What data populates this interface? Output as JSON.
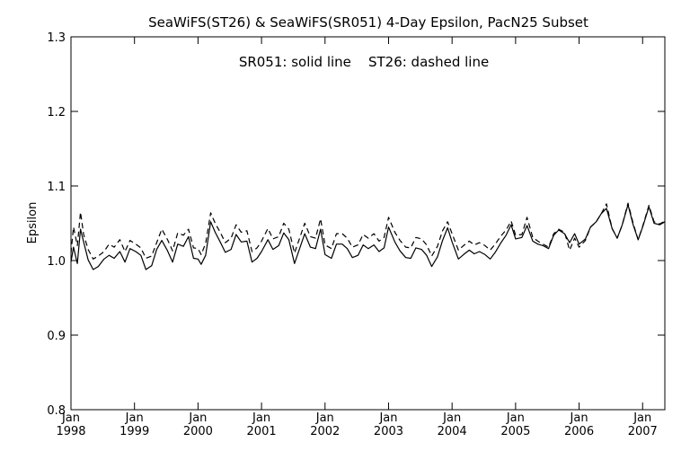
{
  "chart_data": {
    "type": "line",
    "title": "SeaWiFS(ST26) & SeaWiFS(SR051) 4-Day Epsilon, PacN25 Subset",
    "annotation": "SR051: solid line    ST26: dashed line",
    "xlabel": "",
    "ylabel": "Epsilon",
    "ylim": [
      0.8,
      1.3
    ],
    "y_ticks": [
      0.8,
      0.9,
      1.0,
      1.1,
      1.2,
      1.3
    ],
    "y_tick_labels": [
      "0.8",
      "0.9",
      "1.0",
      "1.1",
      "1.2",
      "1.3"
    ],
    "xlim": [
      1998.0,
      2007.35
    ],
    "x_ticks": [
      1998,
      1999,
      2000,
      2001,
      2002,
      2003,
      2004,
      2005,
      2006,
      2007
    ],
    "x_tick_month": "Jan",
    "x_tick_years": [
      "1998",
      "1999",
      "2000",
      "2001",
      "2002",
      "2003",
      "2004",
      "2005",
      "2006",
      "2007"
    ],
    "grid": false,
    "legend": "none",
    "series": [
      {
        "name": "SR051",
        "style": "solid",
        "x": [
          1998.0,
          1998.04,
          1998.1,
          1998.15,
          1998.2,
          1998.27,
          1998.35,
          1998.43,
          1998.52,
          1998.6,
          1998.68,
          1998.77,
          1998.85,
          1998.93,
          1999.02,
          1999.1,
          1999.18,
          1999.27,
          1999.35,
          1999.43,
          1999.52,
          1999.6,
          1999.68,
          1999.77,
          1999.85,
          1999.93,
          2000.0,
          2000.05,
          2000.12,
          2000.2,
          2000.27,
          2000.35,
          2000.43,
          2000.52,
          2000.6,
          2000.68,
          2000.77,
          2000.85,
          2000.93,
          2001.0,
          2001.1,
          2001.18,
          2001.27,
          2001.35,
          2001.43,
          2001.52,
          2001.6,
          2001.68,
          2001.77,
          2001.85,
          2001.93,
          2002.0,
          2002.1,
          2002.18,
          2002.27,
          2002.35,
          2002.43,
          2002.52,
          2002.6,
          2002.68,
          2002.77,
          2002.85,
          2002.93,
          2003.0,
          2003.1,
          2003.18,
          2003.27,
          2003.35,
          2003.43,
          2003.52,
          2003.6,
          2003.68,
          2003.77,
          2003.85,
          2003.93,
          2004.0,
          2004.1,
          2004.18,
          2004.27,
          2004.35,
          2004.43,
          2004.52,
          2004.6,
          2004.68,
          2004.77,
          2004.85,
          2004.93,
          2005.0,
          2005.1,
          2005.18,
          2005.27,
          2005.35,
          2005.43,
          2005.52,
          2005.6,
          2005.68,
          2005.77,
          2005.85,
          2005.93,
          2006.0,
          2006.1,
          2006.18,
          2006.27,
          2006.35,
          2006.43,
          2006.52,
          2006.6,
          2006.68,
          2006.77,
          2006.85,
          2006.93,
          2007.0,
          2007.1,
          2007.18,
          2007.27,
          2007.35
        ],
        "values": [
          0.998,
          1.018,
          0.996,
          1.042,
          1.025,
          1.001,
          0.988,
          0.992,
          1.002,
          1.007,
          1.003,
          1.012,
          0.998,
          1.016,
          1.012,
          1.007,
          0.988,
          0.993,
          1.015,
          1.027,
          1.013,
          0.998,
          1.022,
          1.019,
          1.032,
          1.003,
          1.002,
          0.995,
          1.007,
          1.052,
          1.038,
          1.025,
          1.011,
          1.015,
          1.035,
          1.025,
          1.026,
          0.998,
          1.003,
          1.012,
          1.028,
          1.015,
          1.02,
          1.037,
          1.028,
          0.996,
          1.016,
          1.036,
          1.018,
          1.016,
          1.042,
          1.008,
          1.003,
          1.022,
          1.022,
          1.016,
          1.004,
          1.007,
          1.021,
          1.016,
          1.021,
          1.012,
          1.017,
          1.045,
          1.025,
          1.013,
          1.004,
          1.003,
          1.017,
          1.015,
          1.007,
          0.992,
          1.005,
          1.027,
          1.044,
          1.025,
          1.002,
          1.008,
          1.014,
          1.009,
          1.012,
          1.008,
          1.002,
          1.011,
          1.024,
          1.034,
          1.048,
          1.029,
          1.031,
          1.047,
          1.026,
          1.022,
          1.02,
          1.016,
          1.034,
          1.041,
          1.036,
          1.024,
          1.036,
          1.022,
          1.029,
          1.045,
          1.052,
          1.063,
          1.07,
          1.043,
          1.03,
          1.048,
          1.075,
          1.048,
          1.028,
          1.045,
          1.072,
          1.05,
          1.048,
          1.052
        ],
        "color": "#000000"
      },
      {
        "name": "ST26",
        "style": "dashed",
        "x": [
          1998.0,
          1998.04,
          1998.1,
          1998.15,
          1998.2,
          1998.27,
          1998.35,
          1998.43,
          1998.52,
          1998.6,
          1998.68,
          1998.77,
          1998.85,
          1998.93,
          1999.02,
          1999.1,
          1999.18,
          1999.27,
          1999.35,
          1999.43,
          1999.52,
          1999.6,
          1999.68,
          1999.77,
          1999.85,
          1999.93,
          2000.0,
          2000.05,
          2000.12,
          2000.2,
          2000.27,
          2000.35,
          2000.43,
          2000.52,
          2000.6,
          2000.68,
          2000.77,
          2000.85,
          2000.93,
          2001.0,
          2001.1,
          2001.18,
          2001.27,
          2001.35,
          2001.43,
          2001.52,
          2001.6,
          2001.68,
          2001.77,
          2001.85,
          2001.93,
          2002.0,
          2002.1,
          2002.18,
          2002.27,
          2002.35,
          2002.43,
          2002.52,
          2002.6,
          2002.68,
          2002.77,
          2002.85,
          2002.93,
          2003.0,
          2003.1,
          2003.18,
          2003.27,
          2003.35,
          2003.43,
          2003.52,
          2003.6,
          2003.68,
          2003.77,
          2003.85,
          2003.93,
          2004.0,
          2004.1,
          2004.18,
          2004.27,
          2004.35,
          2004.43,
          2004.52,
          2004.6,
          2004.68,
          2004.77,
          2004.85,
          2004.93,
          2005.0,
          2005.1,
          2005.18,
          2005.27,
          2005.35,
          2005.43,
          2005.52,
          2005.6,
          2005.68,
          2005.77,
          2005.85,
          2005.93,
          2006.0,
          2006.1,
          2006.18,
          2006.27,
          2006.35,
          2006.43,
          2006.52,
          2006.6,
          2006.68,
          2006.77,
          2006.85,
          2006.93,
          2007.0,
          2007.1,
          2007.18,
          2007.27,
          2007.35
        ],
        "values": [
          1.01,
          1.045,
          1.02,
          1.065,
          1.035,
          1.015,
          1.002,
          1.006,
          1.012,
          1.022,
          1.018,
          1.028,
          1.012,
          1.027,
          1.022,
          1.017,
          1.003,
          1.006,
          1.024,
          1.042,
          1.028,
          1.013,
          1.037,
          1.034,
          1.042,
          1.017,
          1.016,
          1.008,
          1.023,
          1.064,
          1.05,
          1.038,
          1.024,
          1.03,
          1.048,
          1.038,
          1.04,
          1.012,
          1.017,
          1.026,
          1.043,
          1.029,
          1.032,
          1.05,
          1.042,
          1.01,
          1.03,
          1.05,
          1.032,
          1.03,
          1.056,
          1.021,
          1.016,
          1.036,
          1.036,
          1.03,
          1.018,
          1.021,
          1.035,
          1.03,
          1.036,
          1.026,
          1.031,
          1.058,
          1.038,
          1.027,
          1.018,
          1.017,
          1.031,
          1.029,
          1.021,
          1.006,
          1.019,
          1.04,
          1.052,
          1.036,
          1.014,
          1.02,
          1.026,
          1.021,
          1.024,
          1.02,
          1.014,
          1.022,
          1.033,
          1.041,
          1.053,
          1.034,
          1.035,
          1.058,
          1.031,
          1.026,
          1.022,
          1.018,
          1.036,
          1.042,
          1.038,
          1.014,
          1.03,
          1.018,
          1.027,
          1.045,
          1.052,
          1.063,
          1.076,
          1.043,
          1.03,
          1.048,
          1.077,
          1.05,
          1.028,
          1.046,
          1.074,
          1.052,
          1.049,
          1.053
        ],
        "color": "#000000"
      }
    ]
  }
}
